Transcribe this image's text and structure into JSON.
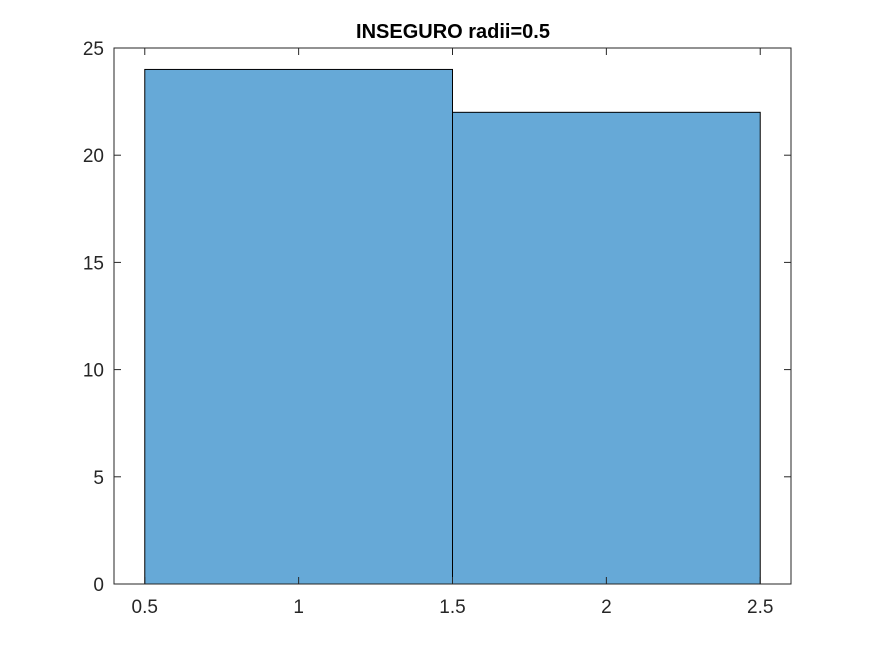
{
  "chart_data": {
    "type": "bar",
    "title": "INSEGURO radii=0.5",
    "xlabel": "",
    "ylabel": "",
    "bins": [
      {
        "x_start": 0.5,
        "x_end": 1.5,
        "value": 24
      },
      {
        "x_start": 1.5,
        "x_end": 2.5,
        "value": 22
      }
    ],
    "xlim": [
      0.4,
      2.6
    ],
    "ylim": [
      0,
      25
    ],
    "xticks": [
      0.5,
      1,
      1.5,
      2,
      2.5
    ],
    "xtick_labels": [
      "0.5",
      "1",
      "1.5",
      "2",
      "2.5"
    ],
    "yticks": [
      0,
      5,
      10,
      15,
      20,
      25
    ],
    "ytick_labels": [
      "0",
      "5",
      "10",
      "15",
      "20",
      "25"
    ],
    "grid": false,
    "bar_color": "#66a9d7",
    "edge_color": "#000000"
  }
}
